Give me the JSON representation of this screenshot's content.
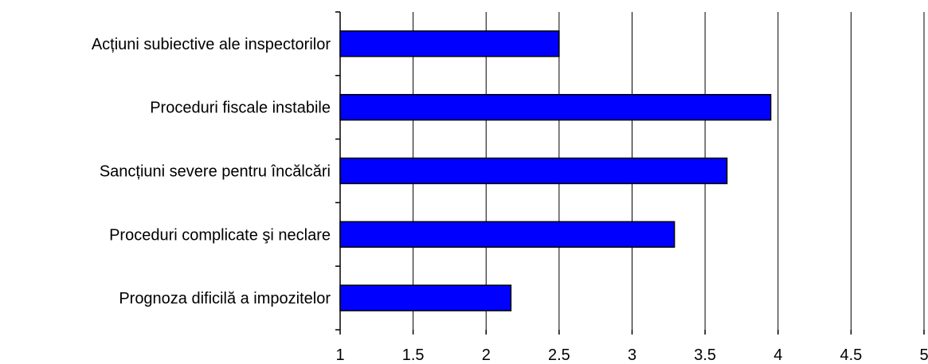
{
  "chart_data": {
    "type": "bar",
    "orientation": "horizontal",
    "title": "",
    "xlabel": "",
    "ylabel": "",
    "categories": [
      "Acțiuni subiective ale inspectorilor",
      "Proceduri fiscale instabile",
      "Sancțiuni severe pentru încălcări",
      "Proceduri complicate şi neclare",
      "Prognoza dificilă a impozitelor"
    ],
    "values": [
      2.5,
      3.95,
      3.65,
      3.29,
      2.17
    ],
    "xlim": [
      1,
      5
    ],
    "xticks": [
      "1",
      "1.5",
      "2",
      "2.5",
      "3",
      "3.5",
      "4",
      "4.5",
      "5"
    ],
    "grid": "vertical",
    "legend": "none",
    "colors": {
      "bar": "#0000ff",
      "grid": "#000000"
    }
  }
}
